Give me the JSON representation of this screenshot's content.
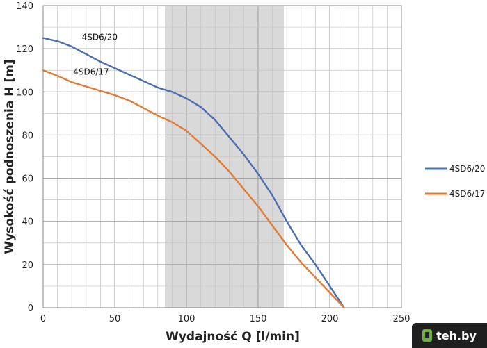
{
  "chart_data": {
    "type": "line",
    "title": "",
    "xlabel": "Wydajność Q [l/min]",
    "ylabel": "Wysokość podnoszenia H [m]",
    "xlim": [
      0,
      250
    ],
    "ylim": [
      0,
      140
    ],
    "x_ticks": [
      0,
      50,
      100,
      150,
      200,
      250
    ],
    "y_ticks": [
      0,
      20,
      40,
      60,
      80,
      100,
      120,
      140
    ],
    "x_minor_step": 10,
    "y_minor_step": 10,
    "grid": true,
    "highlight_band": {
      "x_from": 85,
      "x_to": 168,
      "color": "#d9d9d9"
    },
    "legend_position": "right",
    "series": [
      {
        "name": "4SD6/20",
        "color": "#4a6fb0",
        "x": [
          0,
          10,
          20,
          30,
          40,
          50,
          60,
          70,
          80,
          90,
          100,
          110,
          120,
          130,
          140,
          150,
          160,
          170,
          180,
          190,
          200,
          210
        ],
        "y": [
          125,
          123.5,
          121,
          117.5,
          114,
          111,
          108,
          105,
          102,
          100,
          97,
          93,
          87,
          79,
          71,
          62,
          52,
          40,
          29,
          20,
          10,
          0
        ]
      },
      {
        "name": "4SD6/17",
        "color": "#e07a35",
        "x": [
          0,
          10,
          20,
          30,
          40,
          50,
          60,
          70,
          80,
          90,
          100,
          110,
          120,
          130,
          140,
          150,
          160,
          170,
          180,
          190,
          200,
          210
        ],
        "y": [
          110,
          107.5,
          104.5,
          102.5,
          100.5,
          98.5,
          96,
          92.5,
          89,
          86,
          82,
          76,
          70,
          63,
          55,
          47,
          38,
          29,
          21,
          14,
          7,
          0
        ]
      }
    ],
    "annotations": [
      {
        "text": "4SD6/20",
        "x": 27,
        "y": 124
      },
      {
        "text": "4SD6/17",
        "x": 21,
        "y": 108
      }
    ]
  },
  "watermark": {
    "text": "teh.by",
    "icon": "logo-icon"
  }
}
